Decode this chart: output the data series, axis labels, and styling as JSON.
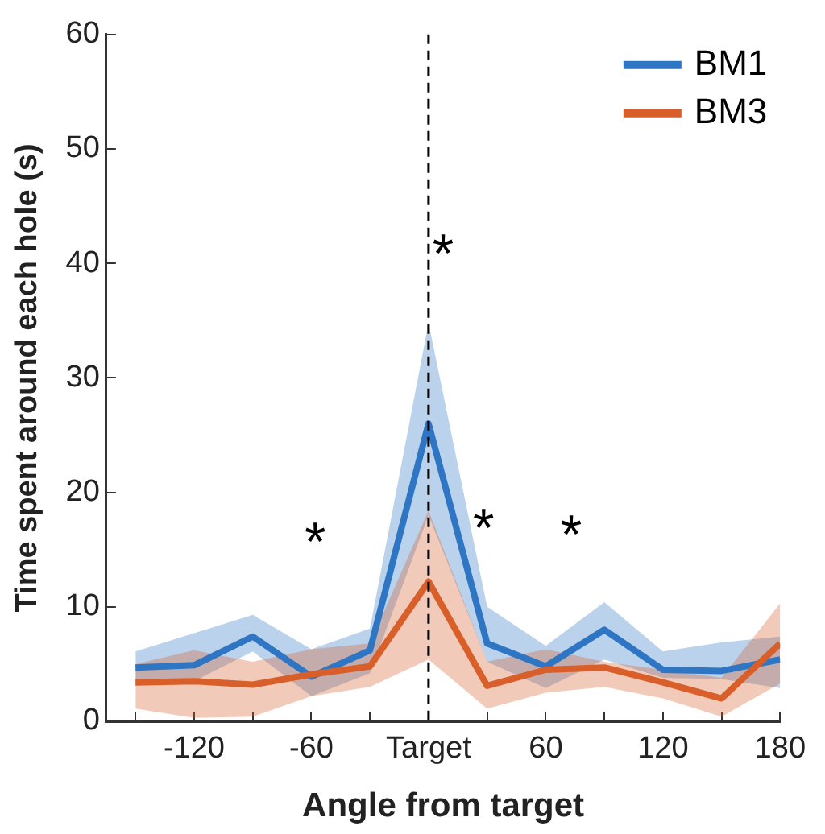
{
  "chart_data": {
    "type": "line",
    "xlabel": "Angle from target",
    "ylabel": "Time spent around each hole (s)",
    "x": [
      -150,
      -120,
      -90,
      -60,
      -30,
      0,
      30,
      60,
      90,
      120,
      150,
      180
    ],
    "xlim": [
      -165,
      180
    ],
    "xticks": [
      {
        "value": -150,
        "label": null
      },
      -120,
      {
        "value": -90,
        "label": null
      },
      -60,
      {
        "value": -30,
        "label": null
      },
      {
        "value": 0,
        "label": "Target"
      },
      {
        "value": 30,
        "label": null
      },
      60,
      {
        "value": 90,
        "label": null
      },
      120,
      {
        "value": 150,
        "label": null
      },
      180
    ],
    "ylim": [
      0,
      60
    ],
    "yticks": [
      0,
      10,
      20,
      30,
      40,
      50,
      60
    ],
    "series": [
      {
        "name": "BM1",
        "color": "#2e75c3",
        "values": [
          4.7,
          4.9,
          7.4,
          3.9,
          6.2,
          26,
          6.8,
          4.8,
          8.0,
          4.5,
          4.4,
          5.4
        ],
        "lower": [
          3.7,
          3.5,
          6.1,
          2.2,
          4.2,
          18,
          5.2,
          2.9,
          5.4,
          3.8,
          3.7,
          2.9
        ],
        "upper": [
          6.1,
          7.7,
          9.3,
          6.3,
          8.1,
          34.8,
          10,
          6.6,
          10.4,
          6.1,
          6.9,
          7.4
        ]
      },
      {
        "name": "BM3",
        "color": "#d95f2a",
        "values": [
          3.4,
          3.5,
          3.2,
          4.1,
          4.8,
          12.2,
          3.1,
          4.5,
          4.7,
          3.4,
          2.0,
          6.8
        ],
        "lower": [
          1.1,
          0.3,
          0.4,
          2.2,
          3.0,
          5.4,
          1.1,
          2.5,
          3.0,
          2.0,
          0.4,
          3.3
        ],
        "upper": [
          5.0,
          6.2,
          5.2,
          6.3,
          6.8,
          18.4,
          5.2,
          6.3,
          5.2,
          4.5,
          3.8,
          10.3
        ]
      }
    ],
    "ref_lines": [
      {
        "axis": "x",
        "value": 0,
        "color": "#000000",
        "line_style": "dashed"
      }
    ],
    "annotations": [
      "*",
      "*",
      "*",
      "*"
    ],
    "legend": "top right",
    "grid": false,
    "marker": "none",
    "line_style": "solid"
  }
}
